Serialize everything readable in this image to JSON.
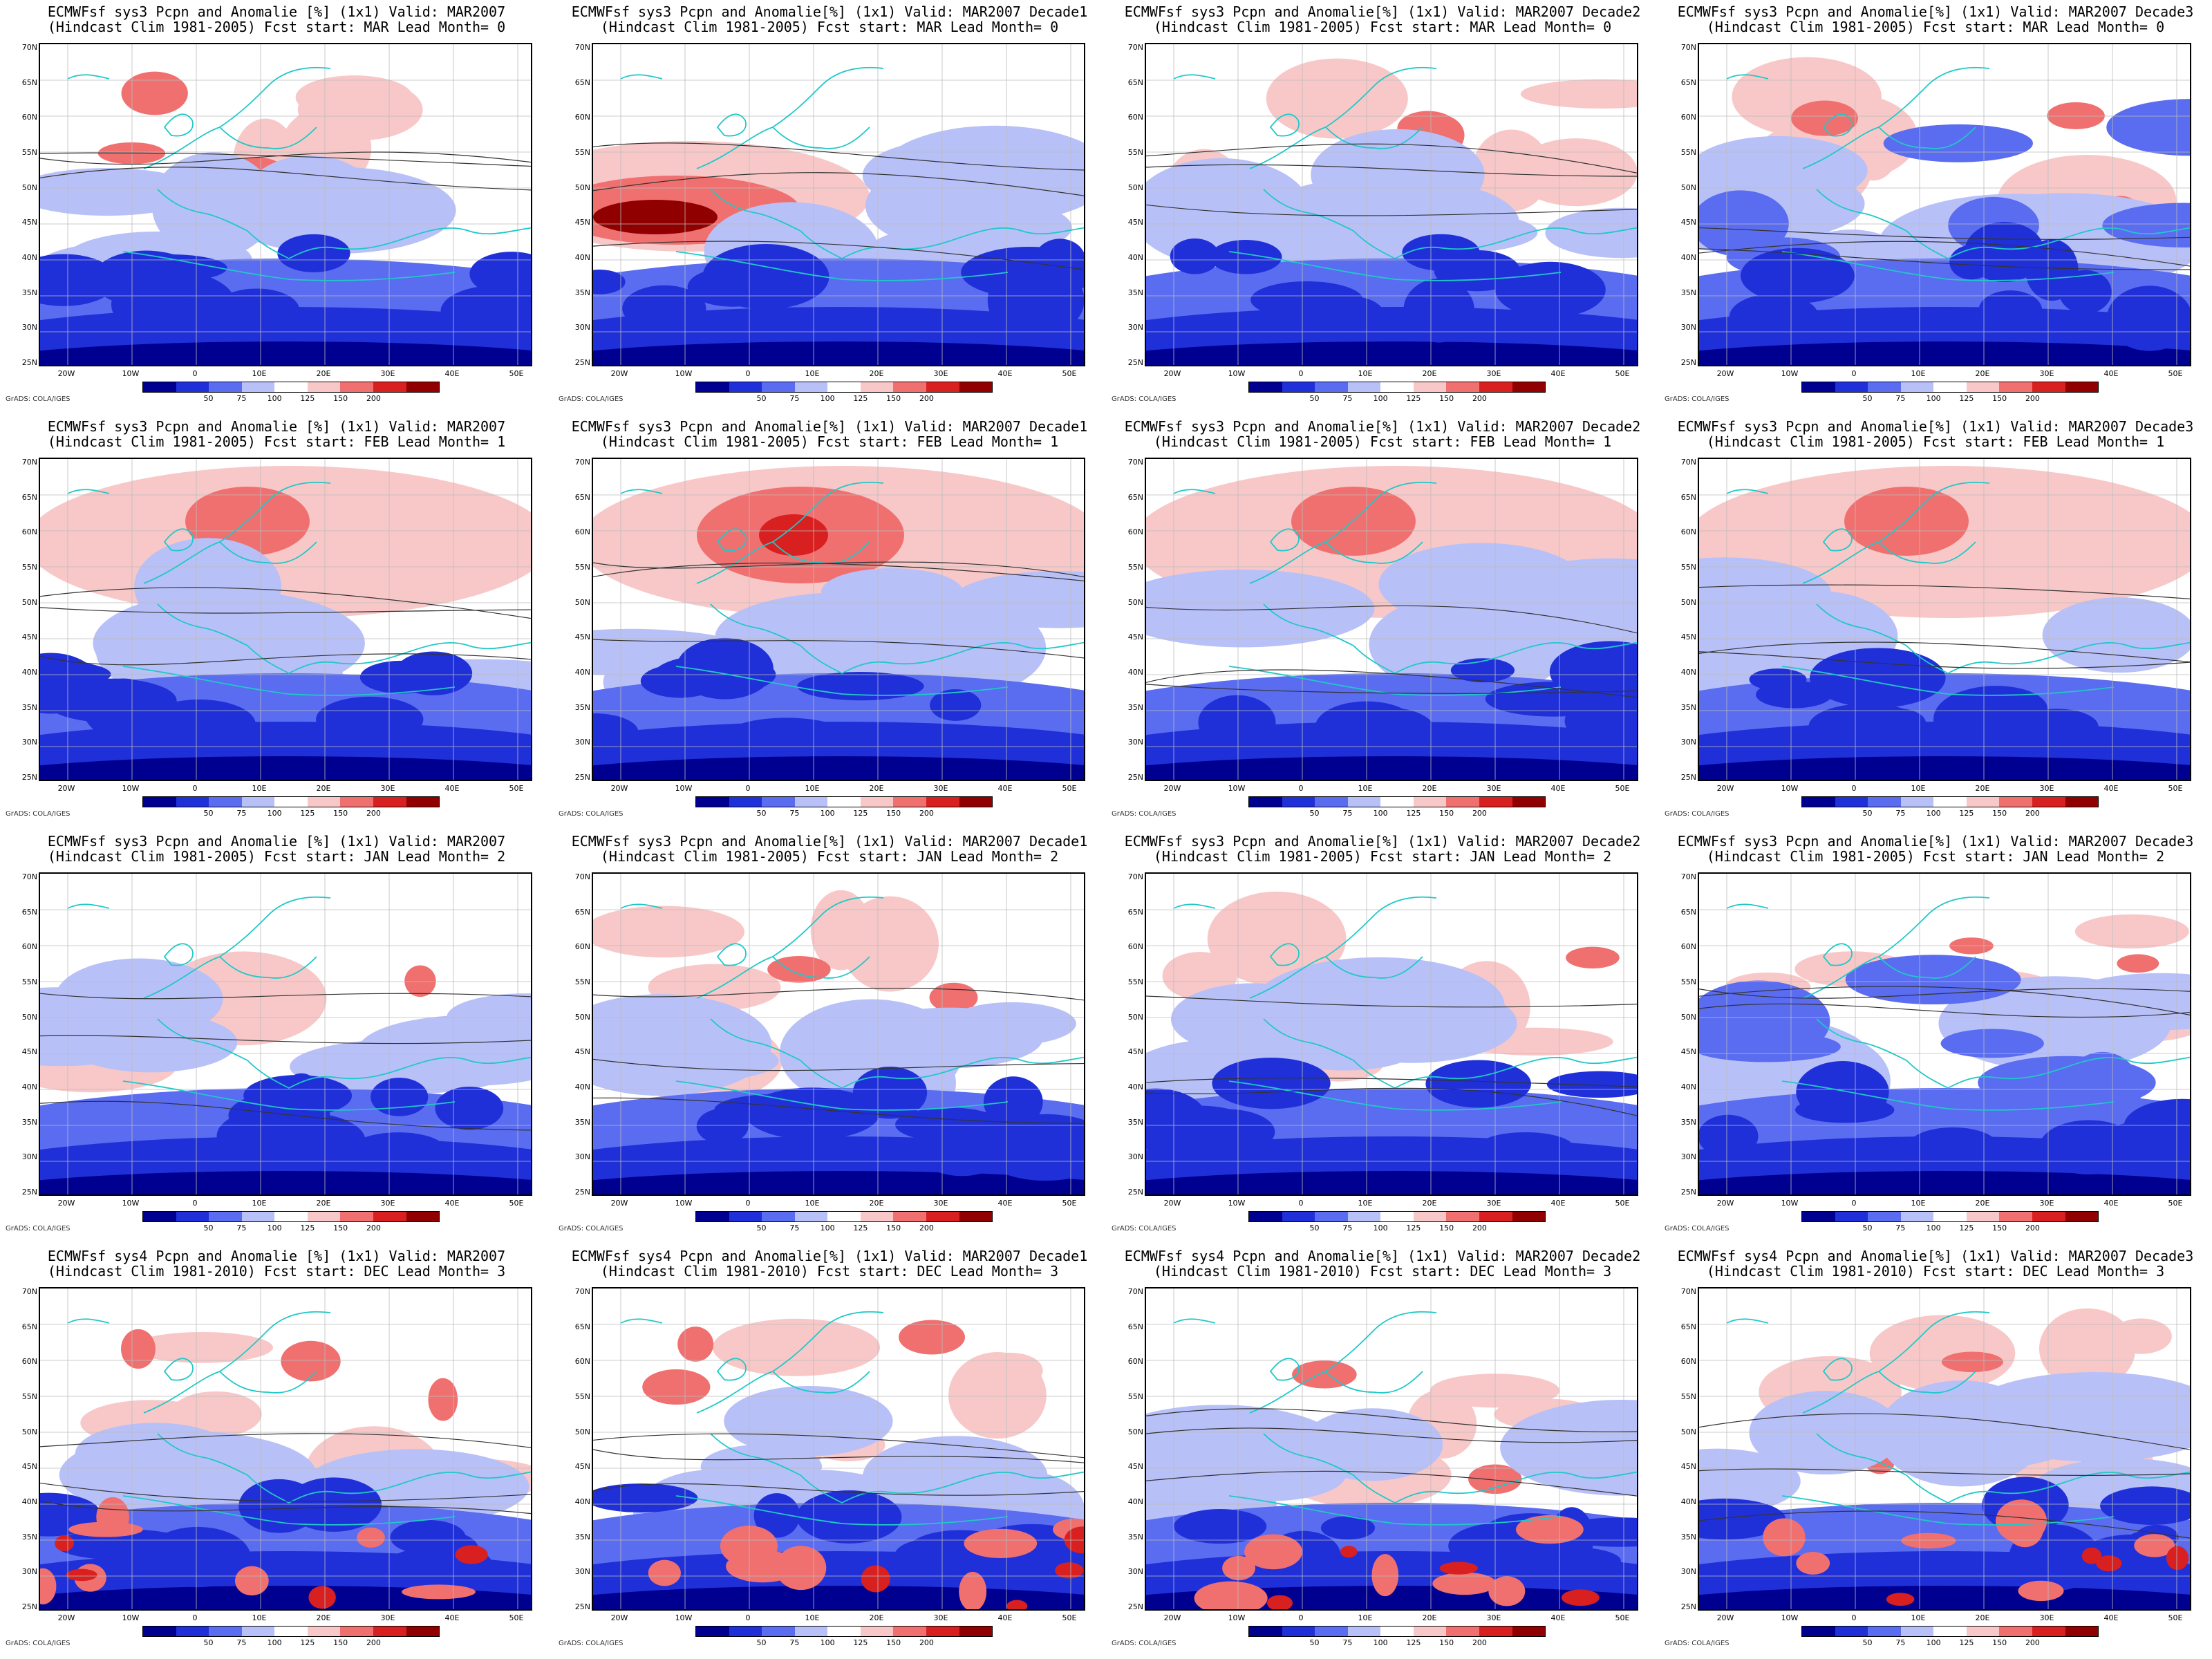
{
  "credit": "GrADS: COLA/IGES",
  "lat_labels": [
    "70N",
    "65N",
    "60N",
    "55N",
    "50N",
    "45N",
    "40N",
    "35N",
    "30N",
    "25N"
  ],
  "lon_labels": [
    "20W",
    "10W",
    "0",
    "10E",
    "20E",
    "30E",
    "40E",
    "50E"
  ],
  "colorbar": {
    "labels": [
      "50",
      "75",
      "100",
      "125",
      "150",
      "200"
    ],
    "colors": [
      "#000090",
      "#2030d8",
      "#5a6cf0",
      "#b8c0f8",
      "#ffffff",
      "#f8c8c8",
      "#f07070",
      "#d82020",
      "#900000"
    ]
  },
  "panels": [
    {
      "title1": "ECMWFsf sys3  Pcpn and Anomalie [%] (1x1) Valid: MAR2007",
      "title2": "(Hindcast Clim 1981-2005) Fcst start: MAR  Lead Month= 0",
      "pattern": "mixed"
    },
    {
      "title1": "ECMWFsf sys3  Pcpn and Anomalie[%] (1x1) Valid: MAR2007 Decade1",
      "title2": "(Hindcast Clim 1981-2005) Fcst start: MAR  Lead Month= 0",
      "pattern": "west-wet"
    },
    {
      "title1": "ECMWFsf sys3  Pcpn and Anomalie[%] (1x1) Valid: MAR2007 Decade2",
      "title2": "(Hindcast Clim 1981-2005) Fcst start: MAR  Lead Month= 0",
      "pattern": "mixed"
    },
    {
      "title1": "ECMWFsf sys3  Pcpn and Anomalie[%] (1x1) Valid: MAR2007 Decade3",
      "title2": "(Hindcast Clim 1981-2005) Fcst start: MAR  Lead Month= 0",
      "pattern": "dry"
    },
    {
      "title1": "ECMWFsf sys3  Pcpn and Anomalie [%] (1x1) Valid: MAR2007",
      "title2": "(Hindcast Clim 1981-2005) Fcst start: FEB  Lead Month= 1",
      "pattern": "north-wet"
    },
    {
      "title1": "ECMWFsf sys3  Pcpn and Anomalie[%] (1x1) Valid: MAR2007 Decade1",
      "title2": "(Hindcast Clim 1981-2005) Fcst start: FEB  Lead Month= 1",
      "pattern": "north-wet-strong"
    },
    {
      "title1": "ECMWFsf sys3  Pcpn and Anomalie[%] (1x1) Valid: MAR2007 Decade2",
      "title2": "(Hindcast Clim 1981-2005) Fcst start: FEB  Lead Month= 1",
      "pattern": "north-wet"
    },
    {
      "title1": "ECMWFsf sys3  Pcpn and Anomalie[%] (1x1) Valid: MAR2007 Decade3",
      "title2": "(Hindcast Clim 1981-2005) Fcst start: FEB  Lead Month= 1",
      "pattern": "north-wet"
    },
    {
      "title1": "ECMWFsf sys3  Pcpn and Anomalie [%] (1x1) Valid: MAR2007",
      "title2": "(Hindcast Clim 1981-2005) Fcst start: JAN  Lead Month= 2",
      "pattern": "mixed"
    },
    {
      "title1": "ECMWFsf sys3  Pcpn and Anomalie[%] (1x1) Valid: MAR2007 Decade1",
      "title2": "(Hindcast Clim 1981-2005) Fcst start: JAN  Lead Month= 2",
      "pattern": "mixed"
    },
    {
      "title1": "ECMWFsf sys3  Pcpn and Anomalie[%] (1x1) Valid: MAR2007 Decade2",
      "title2": "(Hindcast Clim 1981-2005) Fcst start: JAN  Lead Month= 2",
      "pattern": "mixed"
    },
    {
      "title1": "ECMWFsf sys3  Pcpn and Anomalie[%] (1x1) Valid: MAR2007 Decade3",
      "title2": "(Hindcast Clim 1981-2005) Fcst start: JAN  Lead Month= 2",
      "pattern": "dry"
    },
    {
      "title1": "ECMWFsf sys4  Pcpn and Anomalie [%] (1x1) Valid: MAR2007",
      "title2": "(Hindcast Clim 1981-2010) Fcst start: DEC  Lead Month= 3",
      "pattern": "south-patchy"
    },
    {
      "title1": "ECMWFsf sys4  Pcpn and Anomalie[%] (1x1) Valid: MAR2007 Decade1",
      "title2": "(Hindcast Clim 1981-2010) Fcst start: DEC  Lead Month= 3",
      "pattern": "south-patchy"
    },
    {
      "title1": "ECMWFsf sys4  Pcpn and Anomalie[%] (1x1) Valid: MAR2007 Decade2",
      "title2": "(Hindcast Clim 1981-2010) Fcst start: DEC  Lead Month= 3",
      "pattern": "south-patchy"
    },
    {
      "title1": "ECMWFsf sys4  Pcpn and Anomalie[%] (1x1) Valid: MAR2007 Decade3",
      "title2": "(Hindcast Clim 1981-2010) Fcst start: DEC  Lead Month= 3",
      "pattern": "south-patchy"
    }
  ]
}
